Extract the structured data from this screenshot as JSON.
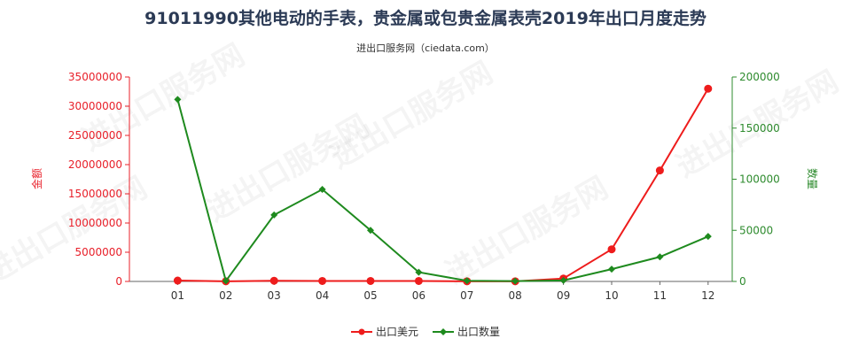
{
  "title": "91011990其他电动的手表，贵金属或包贵金属表壳2019年出口月度走势",
  "subtitle": "进出口服务网（ciedata.com）",
  "watermark": "进出口服务网",
  "colors": {
    "left_axis": "#e8202a",
    "right_axis": "#2e8b2e",
    "series_amount": "#ee1c1c",
    "series_qty": "#1e8a1e",
    "grid": "#e0e0e0"
  },
  "chart_data": {
    "type": "line",
    "categories": [
      "01",
      "02",
      "03",
      "04",
      "05",
      "06",
      "07",
      "08",
      "09",
      "10",
      "11",
      "12"
    ],
    "ylabel_left": "金额",
    "ylabel_right": "数量",
    "ylim_left": [
      0,
      35000000
    ],
    "ylim_right": [
      0,
      200000
    ],
    "yticks_left": [
      "0",
      "5000000",
      "10000000",
      "15000000",
      "20000000",
      "25000000",
      "30000000",
      "35000000"
    ],
    "yticks_right": [
      "0",
      "50000",
      "100000",
      "150000",
      "200000"
    ],
    "grid": false,
    "legend_position": "bottom",
    "series": [
      {
        "name": "出口美元",
        "axis": "left",
        "values": [
          150000,
          20000,
          120000,
          80000,
          80000,
          80000,
          20000,
          20000,
          500000,
          5500000,
          19000000,
          33000000
        ]
      },
      {
        "name": "出口数量",
        "axis": "right",
        "values": [
          178000,
          500,
          65000,
          90000,
          50000,
          9000,
          700,
          300,
          1000,
          12000,
          24000,
          44000
        ]
      }
    ]
  }
}
